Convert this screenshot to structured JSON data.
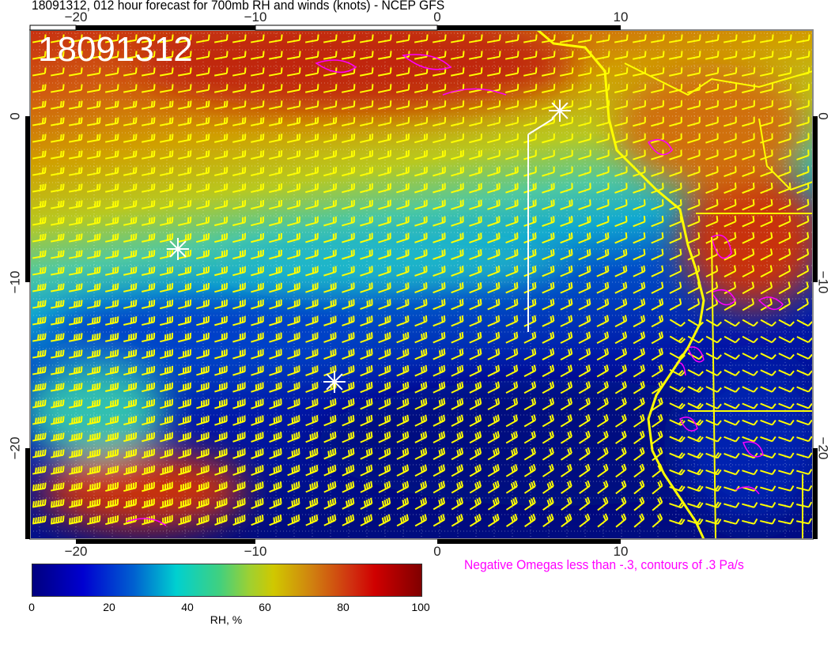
{
  "title": "18091312, 012 hour forecast for 700mb RH and winds (knots) - NCEP GFS",
  "stamp": "18091312",
  "axes": {
    "lon_ticks": [
      "−20",
      "−10",
      "0",
      "10"
    ],
    "lat_ticks": [
      "0",
      "−10",
      "−20"
    ]
  },
  "colorbar": {
    "ticks": [
      "0",
      "20",
      "40",
      "60",
      "80",
      "100"
    ],
    "label": "RH, %",
    "range": [
      0,
      100
    ]
  },
  "omega_note": "Negative Omegas less than -.3, contours of .3 Pa/s",
  "colors": {
    "coastline": "#ffff00",
    "wind_barbs": "#ffff00",
    "omega_contours": "#ff00ff",
    "markers": "#ffffff"
  }
}
